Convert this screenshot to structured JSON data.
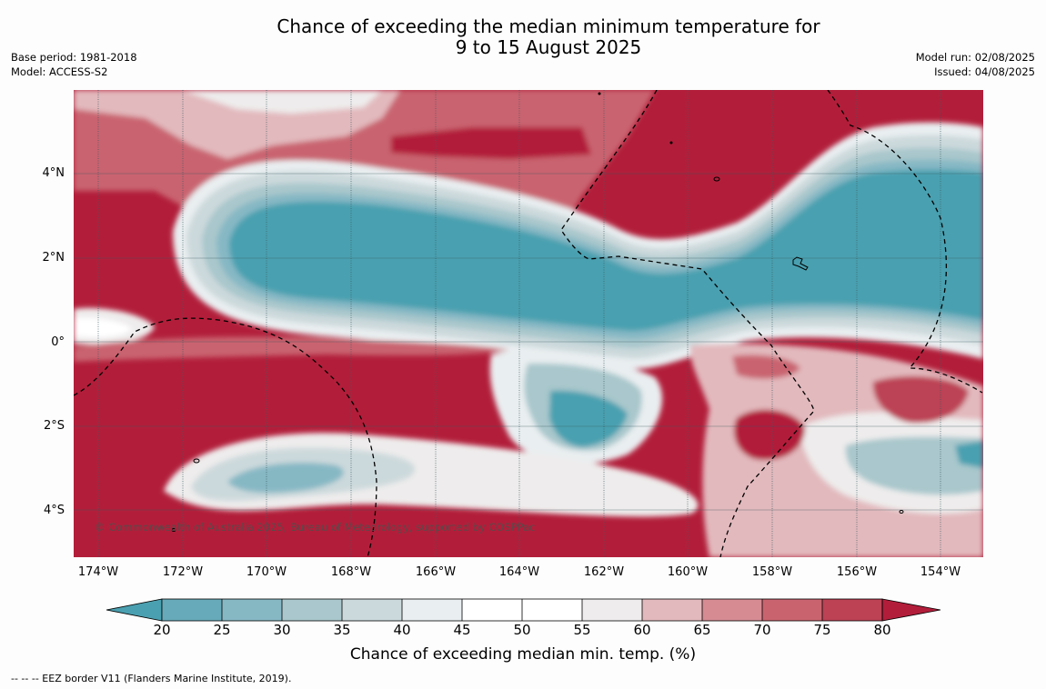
{
  "header": {
    "title_line1": "Chance of exceeding the median minimum temperature for",
    "title_line2": "9 to 15 August 2025",
    "base_period": "Base period: 1981-2018",
    "model": "Model: ACCESS-S2",
    "model_run": "Model run: 02/08/2025",
    "issued": "Issued: 04/08/2025"
  },
  "map": {
    "lat_labels": [
      "4°N",
      "2°N",
      "0°",
      "2°S",
      "4°S"
    ],
    "lon_labels": [
      "174°W",
      "172°W",
      "170°W",
      "168°W",
      "166°W",
      "164°W",
      "162°W",
      "160°W",
      "158°W",
      "156°W",
      "154°W"
    ],
    "copyright": "© Commonwealth of Australia 2025, Bureau of Meteorology, supported by COSPPac",
    "regions": {
      "central_cool_band": "Band of 20–30% chance from about 171°W to 153°W, 0° to 3°N",
      "warm_north": "75–80% chance north of 3°N",
      "warm_south": "75–80% chance south of about 4°S and west of 168°W near the equator"
    }
  },
  "colorbar": {
    "label": "Chance of exceeding median min. temp. (%)",
    "ticks": [
      "20",
      "25",
      "30",
      "35",
      "40",
      "45",
      "50",
      "55",
      "60",
      "65",
      "70",
      "75",
      "80"
    ],
    "colors": {
      "below_20": "#4aa0b0",
      "20_25": "#67aab9",
      "25_30": "#86b8c4",
      "30_35": "#a9c7cc",
      "35_40": "#ccd9dc",
      "40_45": "#e9eef0",
      "45_50": "#ffffff",
      "50_55": "#ffffff",
      "55_60": "#eeecec",
      "60_65": "#e2b9bd",
      "65_70": "#d68b93",
      "70_75": "#c9646f",
      "75_80": "#bc4254",
      "above_80": "#b21e3a"
    }
  },
  "footnote": "--  --  -- EEZ border V11 (Flanders Marine Institute, 2019)."
}
